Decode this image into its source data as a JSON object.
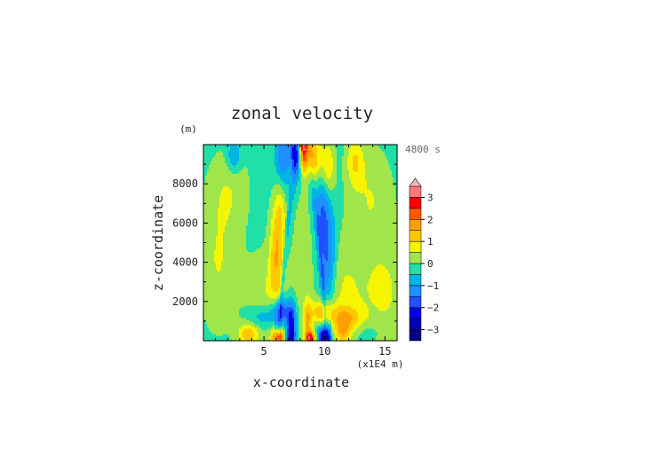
{
  "chart_data": {
    "type": "heatmap",
    "title": "zonal velocity",
    "ylabel": "z-coordinate",
    "yunit": "(m)",
    "xlabel": "x-coordinate",
    "xunit": "(x1E4 m)",
    "time_label": "4800 s",
    "xlim": [
      0,
      16
    ],
    "ylim": [
      0,
      10000
    ],
    "x_ticks": [
      5,
      10,
      15
    ],
    "y_ticks": [
      2000,
      4000,
      6000,
      8000
    ],
    "colorbar": {
      "ticks": [
        "3",
        "2",
        "1",
        "0",
        "−1",
        "−2",
        "−3"
      ],
      "tick_values": [
        3,
        2,
        1,
        0,
        -1,
        -2,
        -3
      ],
      "levels": [
        {
          "min": -3.5,
          "max": -3.0,
          "color": "#000080"
        },
        {
          "min": -3.0,
          "max": -2.5,
          "color": "#0000b4"
        },
        {
          "min": -2.5,
          "max": -2.0,
          "color": "#0000e6"
        },
        {
          "min": -2.0,
          "max": -1.5,
          "color": "#2050ff"
        },
        {
          "min": -1.5,
          "max": -1.0,
          "color": "#1e90ff"
        },
        {
          "min": -1.0,
          "max": -0.5,
          "color": "#00b4e6"
        },
        {
          "min": -0.5,
          "max": 0.0,
          "color": "#20e0a8"
        },
        {
          "min": 0.0,
          "max": 0.5,
          "color": "#a0e64a"
        },
        {
          "min": 0.5,
          "max": 1.0,
          "color": "#f5f500"
        },
        {
          "min": 1.0,
          "max": 1.5,
          "color": "#ffc800"
        },
        {
          "min": 1.5,
          "max": 2.0,
          "color": "#ffa000"
        },
        {
          "min": 2.0,
          "max": 2.5,
          "color": "#ff5a00"
        },
        {
          "min": 2.5,
          "max": 3.0,
          "color": "#ff0000"
        },
        {
          "min": 3.0,
          "max": 3.5,
          "color": "#ff7878"
        },
        {
          "min": 3.5,
          "max": 4.0,
          "color": "#ffb4b4"
        }
      ]
    },
    "field": {
      "background": -0.25,
      "features": [
        {
          "x": 1.2,
          "z": 4000,
          "sx": 1.2,
          "sz": 2500,
          "v": 0.75
        },
        {
          "x": 15.0,
          "z": 2500,
          "sx": 1.5,
          "sz": 2200,
          "v": 0.8
        },
        {
          "x": 5.3,
          "z": 2200,
          "sx": 1.3,
          "sz": 1800,
          "v": 0.7
        },
        {
          "x": 11.4,
          "z": 2600,
          "sx": 1.4,
          "sz": 2000,
          "v": 0.75
        },
        {
          "x": 2.2,
          "z": 7800,
          "sx": 1.2,
          "sz": 1500,
          "v": 0.6
        },
        {
          "x": 13.8,
          "z": 7500,
          "sx": 1.3,
          "sz": 1800,
          "v": 0.7
        },
        {
          "x": 8.2,
          "z": 9800,
          "sx": 0.3,
          "sz": 800,
          "v": 3.6
        },
        {
          "x": 7.7,
          "z": 9700,
          "sx": 0.35,
          "sz": 800,
          "v": -2.6
        },
        {
          "x": 9.0,
          "z": 9400,
          "sx": 0.5,
          "sz": 900,
          "v": 1.8
        },
        {
          "x": 6.5,
          "z": 9300,
          "sx": 0.4,
          "sz": 1100,
          "v": -1.3
        },
        {
          "x": 10.3,
          "z": 8900,
          "sx": 0.4,
          "sz": 1000,
          "v": 1.2
        },
        {
          "x": 2.5,
          "z": 9400,
          "sx": 0.4,
          "sz": 600,
          "v": -1.0
        },
        {
          "x": 12.5,
          "z": 9200,
          "sx": 0.5,
          "sz": 900,
          "v": 1.1
        },
        {
          "x": 6.0,
          "z": 4500,
          "sx": 0.4,
          "sz": 2000,
          "v": 1.4
        },
        {
          "x": 6.4,
          "z": 6600,
          "sx": 0.3,
          "sz": 1400,
          "v": 0.9
        },
        {
          "x": 10.2,
          "z": 4200,
          "sx": 0.5,
          "sz": 1800,
          "v": -1.6
        },
        {
          "x": 9.8,
          "z": 6800,
          "sx": 0.4,
          "sz": 1200,
          "v": -1.0
        },
        {
          "x": 8.2,
          "z": 4500,
          "sx": 0.6,
          "sz": 2500,
          "v": 0.55
        },
        {
          "x": 6.4,
          "z": 1500,
          "sx": 0.6,
          "sz": 500,
          "v": -2.0
        },
        {
          "x": 4.8,
          "z": 1200,
          "sx": 0.8,
          "sz": 450,
          "v": -0.9
        },
        {
          "x": 9.7,
          "z": 1500,
          "sx": 0.6,
          "sz": 450,
          "v": 1.4
        },
        {
          "x": 11.5,
          "z": 1300,
          "sx": 1.0,
          "sz": 450,
          "v": 1.0
        },
        {
          "x": 13.0,
          "z": 1000,
          "sx": 1.1,
          "sz": 400,
          "v": 0.8
        },
        {
          "x": 3.7,
          "z": 350,
          "sx": 0.6,
          "sz": 400,
          "v": 1.5
        },
        {
          "x": 6.2,
          "z": 200,
          "sx": 0.35,
          "sz": 300,
          "v": 3.0
        },
        {
          "x": 7.1,
          "z": 200,
          "sx": 0.3,
          "sz": 300,
          "v": -1.6
        },
        {
          "x": 8.9,
          "z": 150,
          "sx": 0.35,
          "sz": 250,
          "v": 2.6
        },
        {
          "x": 9.9,
          "z": 250,
          "sx": 0.4,
          "sz": 350,
          "v": -2.6
        },
        {
          "x": 11.5,
          "z": 450,
          "sx": 0.5,
          "sz": 400,
          "v": 1.3
        },
        {
          "x": 13.5,
          "z": 800,
          "sx": 0.9,
          "sz": 500,
          "v": -0.8
        },
        {
          "x": 7.3,
          "z": 800,
          "sx": 0.25,
          "sz": 800,
          "v": -2.0
        },
        {
          "x": 8.6,
          "z": 900,
          "sx": 0.25,
          "sz": 800,
          "v": 1.5
        }
      ],
      "arch": {
        "center_x": 8.2,
        "half_width": 2.0,
        "top_z": 9500,
        "amplitude": -0.9
      }
    }
  }
}
